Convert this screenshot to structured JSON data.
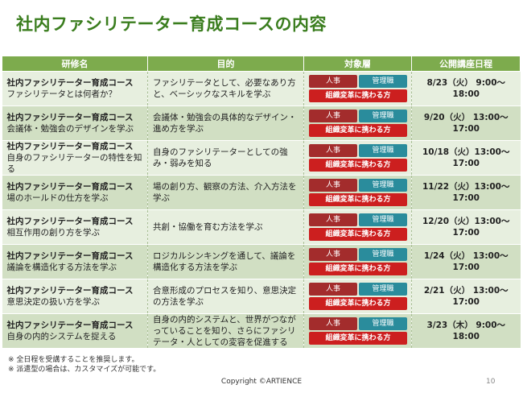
{
  "title": "社内ファシリテーター育成コースの内容",
  "table": {
    "headers": [
      "研修名",
      "目的",
      "対象層",
      "公開講座日程"
    ],
    "tags": {
      "hr": "人事",
      "mgr": "管理職",
      "org": "組織変革に携わる方"
    },
    "rows": [
      {
        "course": "社内ファシリテーター育成コース",
        "subtitle": "ファシリテータとは何者か？",
        "purpose": "ファシリテータとして、必要なあり方と、ベーシックなスキルを学ぶ",
        "date": "8/23（火） 9:00〜18:00"
      },
      {
        "course": "社内ファシリテーター育成コース",
        "subtitle": "会議体・勉強会のデザインを学ぶ",
        "purpose": "会議体・勉強会の具体的なデザイン・進め方を学ぶ",
        "date": "9/20（火） 13:00〜17:00"
      },
      {
        "course": "社内ファシリテーター育成コース",
        "subtitle": "自身のファシリテーターの特性を知る",
        "purpose": "自身のファシリテーターとしての強み・弱みを知る",
        "date": "10/18（火）13:00〜17:00"
      },
      {
        "course": "社内ファシリテーター育成コース",
        "subtitle": "場のホールドの仕方を学ぶ",
        "purpose": "場の創り方、観察の方法、介入方法を学ぶ",
        "date": "11/22（火）13:00〜17:00"
      },
      {
        "course": "社内ファシリテーター育成コース",
        "subtitle": "相互作用の創り方を学ぶ",
        "purpose": "共創・協働を育む方法を学ぶ",
        "date": "12/20（火）13:00〜17:00"
      },
      {
        "course": "社内ファシリテーター育成コース",
        "subtitle": "議論を構造化する方法を学ぶ",
        "purpose": "ロジカルシンキングを通して、議論を構造化する方法を学ぶ",
        "date": "1/24（火） 13:00〜17:00"
      },
      {
        "course": "社内ファシリテーター育成コース",
        "subtitle": "意思決定の扱い方を学ぶ",
        "purpose": "合意形成のプロセスを知り、意思決定の方法を学ぶ",
        "date": "2/21（火） 13:00〜17:00"
      },
      {
        "course": "社内ファシリテーター育成コース",
        "subtitle": "自身の内的システムを捉える",
        "purpose": "自身の内的システムと、世界がつながっていることを知り、さらにファシリテータ・人としての変容を促進する",
        "date": "3/23（木） 9:00〜18:00"
      }
    ]
  },
  "notes": [
    "※ 全日程を受講することを推奨します。",
    "※ 派遣型の場合は、カスタマイズが可能です。"
  ],
  "footer": "Copyright ©ARTIENCE",
  "page_number": "10",
  "colors": {
    "title": "#3a7d1e",
    "header_bg": "#7dab4d",
    "row_light": "#e7efdf",
    "row_dark": "#d1dfc3",
    "tag_hr": "#a32c2c",
    "tag_mgr": "#2a8c9c",
    "tag_org": "#cc1f1f"
  }
}
